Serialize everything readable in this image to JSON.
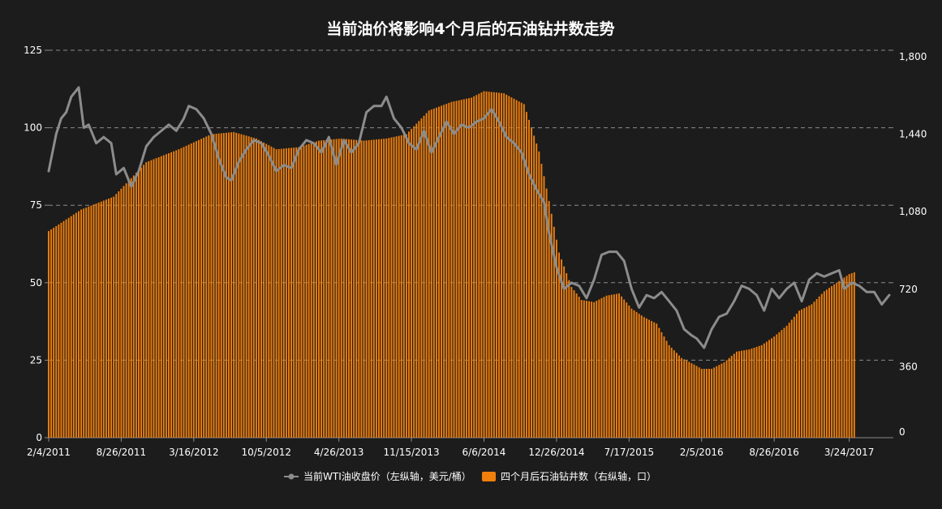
{
  "chart_data": {
    "type": "bar+line",
    "title": "当前油价将影响4个月后的石油钻井数走势",
    "x_tick_labels": [
      "2/4/2011",
      "8/26/2011",
      "3/16/2012",
      "10/5/2012",
      "4/26/2013",
      "11/15/2013",
      "6/6/2014",
      "12/26/2014",
      "7/17/2015",
      "2/5/2016",
      "8/26/2016",
      "3/24/2017"
    ],
    "x_range": [
      "2/4/2011",
      "7/14/2017"
    ],
    "left_axis": {
      "ylim": [
        0,
        125
      ],
      "ticks": [
        "0",
        "25",
        "50",
        "75",
        "100",
        "125"
      ]
    },
    "right_axis": {
      "ylim": [
        0,
        1800
      ],
      "ticks": [
        "0",
        "360",
        "720",
        "1,080",
        "1,440",
        "1,800"
      ]
    },
    "grid": true,
    "legend_position": "bottom",
    "series": [
      {
        "name": "当前WTI油收盘价（左纵轴，美元/桶）",
        "type": "line",
        "axis": "left",
        "color": "#8c8c8c",
        "points": [
          [
            "2/4/2011",
            86
          ],
          [
            "2/25/2011",
            98
          ],
          [
            "3/11/2011",
            103
          ],
          [
            "3/25/2011",
            105
          ],
          [
            "4/8/2011",
            110
          ],
          [
            "4/29/2011",
            113
          ],
          [
            "5/13/2011",
            100
          ],
          [
            "5/27/2011",
            101
          ],
          [
            "6/17/2011",
            95
          ],
          [
            "7/8/2011",
            97
          ],
          [
            "7/29/2011",
            95
          ],
          [
            "8/12/2011",
            85
          ],
          [
            "9/2/2011",
            87
          ],
          [
            "9/23/2011",
            81
          ],
          [
            "10/14/2011",
            86
          ],
          [
            "11/4/2011",
            94
          ],
          [
            "11/25/2011",
            97
          ],
          [
            "12/16/2011",
            99
          ],
          [
            "1/6/2012",
            101
          ],
          [
            "1/27/2012",
            99
          ],
          [
            "2/17/2012",
            103
          ],
          [
            "3/2/2012",
            107
          ],
          [
            "3/23/2012",
            106
          ],
          [
            "4/13/2012",
            103
          ],
          [
            "5/4/2012",
            98
          ],
          [
            "5/25/2012",
            90
          ],
          [
            "6/15/2012",
            84
          ],
          [
            "6/29/2012",
            83
          ],
          [
            "7/20/2012",
            89
          ],
          [
            "8/10/2012",
            93
          ],
          [
            "8/31/2012",
            96
          ],
          [
            "9/21/2012",
            95
          ],
          [
            "10/12/2012",
            91
          ],
          [
            "11/2/2012",
            86
          ],
          [
            "11/23/2012",
            88
          ],
          [
            "12/14/2012",
            87
          ],
          [
            "1/4/2013",
            93
          ],
          [
            "1/25/2013",
            96
          ],
          [
            "2/15/2013",
            95
          ],
          [
            "3/8/2013",
            92
          ],
          [
            "3/29/2013",
            97
          ],
          [
            "4/19/2013",
            88
          ],
          [
            "5/10/2013",
            96
          ],
          [
            "5/31/2013",
            92
          ],
          [
            "6/21/2013",
            95
          ],
          [
            "7/12/2013",
            105
          ],
          [
            "8/2/2013",
            107
          ],
          [
            "8/23/2013",
            107
          ],
          [
            "9/6/2013",
            110
          ],
          [
            "9/27/2013",
            103
          ],
          [
            "10/18/2013",
            100
          ],
          [
            "11/8/2013",
            95
          ],
          [
            "11/29/2013",
            93
          ],
          [
            "12/20/2013",
            99
          ],
          [
            "1/10/2014",
            92
          ],
          [
            "1/31/2014",
            97
          ],
          [
            "2/21/2014",
            102
          ],
          [
            "3/14/2014",
            98
          ],
          [
            "4/4/2014",
            101
          ],
          [
            "4/25/2014",
            100
          ],
          [
            "5/16/2014",
            102
          ],
          [
            "6/6/2014",
            103
          ],
          [
            "6/27/2014",
            106
          ],
          [
            "7/18/2014",
            102
          ],
          [
            "8/8/2014",
            97
          ],
          [
            "8/29/2014",
            95
          ],
          [
            "9/19/2014",
            92
          ],
          [
            "10/10/2014",
            85
          ],
          [
            "10/31/2014",
            80
          ],
          [
            "11/21/2014",
            76
          ],
          [
            "12/5/2014",
            66
          ],
          [
            "12/26/2014",
            55
          ],
          [
            "1/16/2015",
            48
          ],
          [
            "2/6/2015",
            50
          ],
          [
            "2/27/2015",
            49
          ],
          [
            "3/20/2015",
            45
          ],
          [
            "4/10/2015",
            51
          ],
          [
            "5/1/2015",
            59
          ],
          [
            "5/22/2015",
            60
          ],
          [
            "6/12/2015",
            60
          ],
          [
            "7/3/2015",
            57
          ],
          [
            "7/24/2015",
            48
          ],
          [
            "8/14/2015",
            42
          ],
          [
            "9/4/2015",
            46
          ],
          [
            "9/25/2015",
            45
          ],
          [
            "10/16/2015",
            47
          ],
          [
            "11/6/2015",
            44
          ],
          [
            "11/27/2015",
            41
          ],
          [
            "12/18/2015",
            35
          ],
          [
            "1/8/2016",
            33
          ],
          [
            "1/22/2016",
            32
          ],
          [
            "2/12/2016",
            29
          ],
          [
            "3/4/2016",
            35
          ],
          [
            "3/25/2016",
            39
          ],
          [
            "4/15/2016",
            40
          ],
          [
            "5/6/2016",
            44
          ],
          [
            "5/27/2016",
            49
          ],
          [
            "6/17/2016",
            48
          ],
          [
            "7/8/2016",
            46
          ],
          [
            "7/29/2016",
            41
          ],
          [
            "8/19/2016",
            48
          ],
          [
            "9/9/2016",
            45
          ],
          [
            "9/30/2016",
            48
          ],
          [
            "10/21/2016",
            50
          ],
          [
            "11/11/2016",
            44
          ],
          [
            "12/2/2016",
            51
          ],
          [
            "12/23/2016",
            53
          ],
          [
            "1/13/2017",
            52
          ],
          [
            "2/3/2017",
            53
          ],
          [
            "2/24/2017",
            54
          ],
          [
            "3/10/2017",
            48
          ],
          [
            "3/31/2017",
            50
          ],
          [
            "4/21/2017",
            49
          ],
          [
            "5/12/2017",
            47
          ],
          [
            "6/2/2017",
            47
          ],
          [
            "6/23/2017",
            43
          ],
          [
            "7/14/2017",
            46
          ]
        ]
      },
      {
        "name": "四个月后石油钻井数（右纵轴，口）",
        "type": "bar",
        "axis": "right",
        "color": "#f07f0c",
        "points": [
          [
            "2/4/2011",
            960
          ],
          [
            "5/6/2011",
            1060
          ],
          [
            "8/5/2011",
            1120
          ],
          [
            "11/4/2011",
            1280
          ],
          [
            "2/3/2012",
            1340
          ],
          [
            "5/4/2012",
            1410
          ],
          [
            "7/6/2012",
            1420
          ],
          [
            "9/7/2012",
            1390
          ],
          [
            "11/2/2012",
            1340
          ],
          [
            "1/4/2013",
            1350
          ],
          [
            "3/1/2013",
            1380
          ],
          [
            "5/3/2013",
            1390
          ],
          [
            "7/5/2013",
            1380
          ],
          [
            "9/6/2013",
            1390
          ],
          [
            "11/1/2013",
            1410
          ],
          [
            "1/3/2014",
            1520
          ],
          [
            "3/7/2014",
            1560
          ],
          [
            "5/2/2014",
            1580
          ],
          [
            "6/6/2014",
            1610
          ],
          [
            "8/1/2014",
            1600
          ],
          [
            "9/26/2014",
            1550
          ],
          [
            "11/7/2014",
            1330
          ],
          [
            "12/5/2014",
            1100
          ],
          [
            "1/2/2015",
            860
          ],
          [
            "2/6/2015",
            700
          ],
          [
            "3/6/2015",
            640
          ],
          [
            "4/10/2015",
            630
          ],
          [
            "5/15/2015",
            660
          ],
          [
            "6/19/2015",
            670
          ],
          [
            "7/24/2015",
            600
          ],
          [
            "8/28/2015",
            560
          ],
          [
            "10/2/2015",
            530
          ],
          [
            "11/6/2015",
            430
          ],
          [
            "12/11/2015",
            370
          ],
          [
            "1/15/2016",
            340
          ],
          [
            "2/5/2016",
            320
          ],
          [
            "3/4/2016",
            320
          ],
          [
            "4/8/2016",
            350
          ],
          [
            "5/13/2016",
            400
          ],
          [
            "6/17/2016",
            410
          ],
          [
            "7/22/2016",
            430
          ],
          [
            "8/26/2016",
            470
          ],
          [
            "9/30/2016",
            520
          ],
          [
            "11/4/2016",
            590
          ],
          [
            "12/9/2016",
            620
          ],
          [
            "1/13/2017",
            680
          ],
          [
            "2/17/2017",
            720
          ],
          [
            "3/24/2017",
            760
          ],
          [
            "4/7/2017",
            768
          ]
        ]
      }
    ]
  },
  "legend": {
    "line_label": "当前WTI油收盘价（左纵轴，美元/桶）",
    "bar_label": "四个月后石油钻井数（右纵轴，口）"
  }
}
